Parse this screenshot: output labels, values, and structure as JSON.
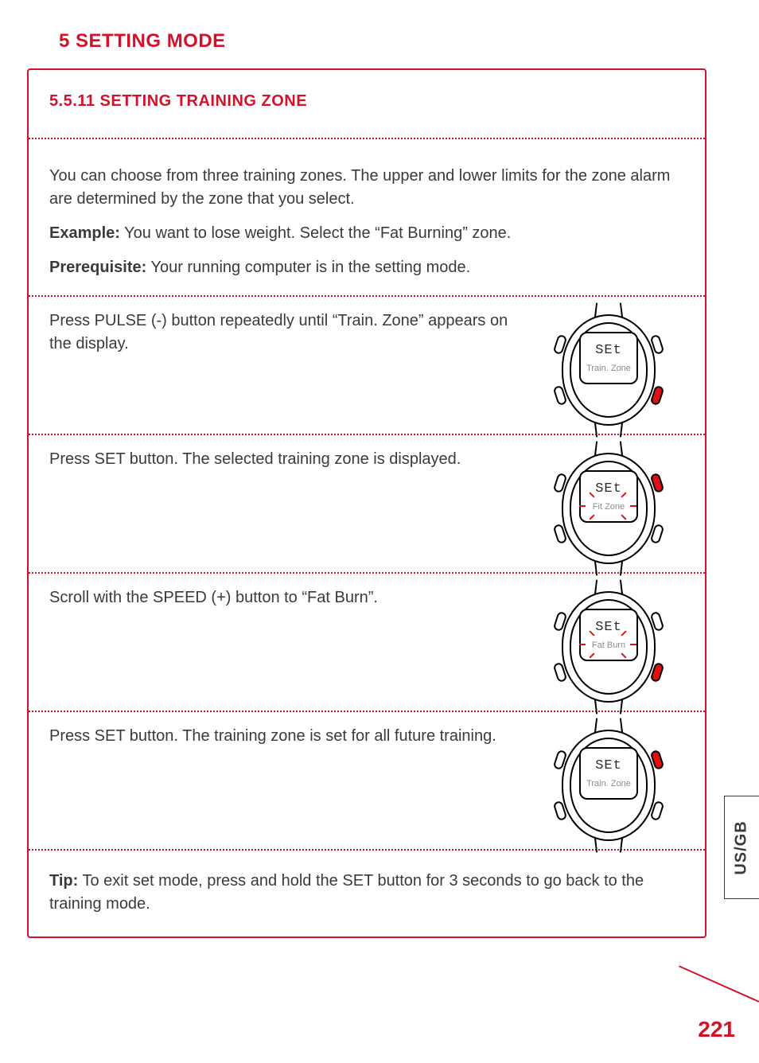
{
  "colors": {
    "accent": "#d4112b",
    "text": "#3a3a3a",
    "dotted": "#d4112b",
    "panel_border": "#d4112b",
    "watch_red": "#d4112b",
    "face_sub": "#9a9a9a"
  },
  "chapter_title": "5 SETTING MODE",
  "section_title": "5.5.11 SETTING TRAINING ZONE",
  "intro": "You can choose from three training zones. The upper and lower limits for the zone alarm are determined by the zone that you select.",
  "example_label": "Example:",
  "example_text": " You want to lose weight. Select the “Fat Burning” zone.",
  "prereq_label": "Prerequisite:",
  "prereq_text": " Your running computer is in the setting mode.",
  "steps": [
    {
      "text": "Press PULSE (-)  button repeatedly until “Train. Zone” appears on the display.",
      "watch": {
        "top": "SEt",
        "bottom": "Train. Zone",
        "flashing": false,
        "red_buttons": [
          "r2"
        ]
      }
    },
    {
      "text": "Press SET button. The selected training zone is displayed.",
      "watch": {
        "top": "SEt",
        "bottom": "Fit Zone",
        "flashing": true,
        "red_buttons": [
          "r1"
        ]
      }
    },
    {
      "text": "Scroll with the SPEED (+) button to “Fat Burn”.",
      "watch": {
        "top": "SEt",
        "bottom": "Fat Burn",
        "flashing": true,
        "red_buttons": [
          "r2"
        ]
      }
    },
    {
      "text": "Press SET button. The training zone is set for all future training.",
      "watch": {
        "top": "SEt",
        "bottom": "Train. Zone",
        "flashing": false,
        "red_buttons": [
          "r1"
        ]
      }
    }
  ],
  "tip_label": "Tip:",
  "tip_text": " To exit set mode, press and hold the SET button for 3 seconds to go back to the training mode.",
  "side_tab": "US/GB",
  "page_number": "221"
}
